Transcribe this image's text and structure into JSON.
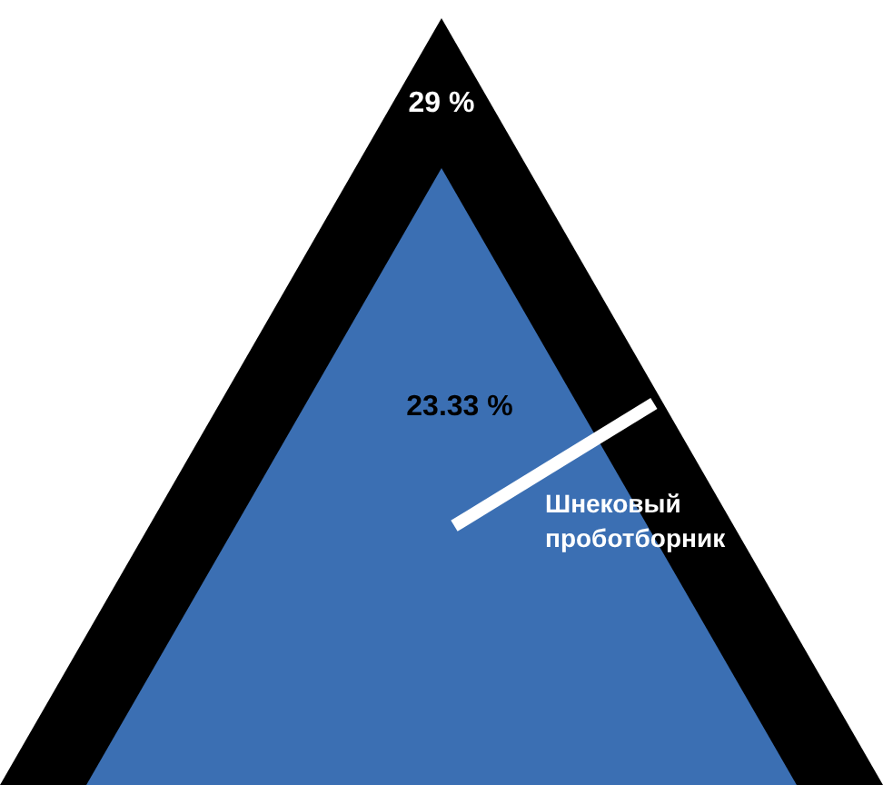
{
  "chart_data": {
    "type": "other",
    "categories": [
      null,
      null
    ],
    "values": [
      29,
      23.33
    ],
    "colors": [
      "#000000",
      "#3b6fb3"
    ],
    "value_labels": [
      "29 %",
      "23.33 %"
    ],
    "annotations": [
      "Шнековый проботборник"
    ]
  }
}
